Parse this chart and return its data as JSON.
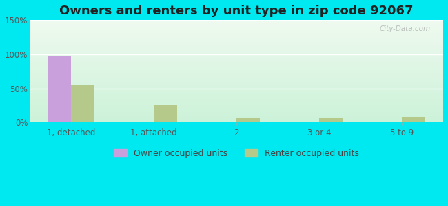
{
  "title": "Owners and renters by unit type in zip code 92067",
  "categories": [
    "1, detached",
    "1, attached",
    "2",
    "3 or 4",
    "5 to 9"
  ],
  "owner_values": [
    98,
    1,
    0,
    0,
    0
  ],
  "renter_values": [
    55,
    25,
    6,
    6,
    7
  ],
  "owner_color": "#c9a0dc",
  "renter_color": "#b5c98a",
  "background_outer": "#00e8f0",
  "ylim": [
    0,
    150
  ],
  "yticks": [
    0,
    50,
    100,
    150
  ],
  "ytick_labels": [
    "0%",
    "50%",
    "100%",
    "150%"
  ],
  "title_fontsize": 13,
  "watermark": "City-Data.com",
  "bar_width": 0.28
}
